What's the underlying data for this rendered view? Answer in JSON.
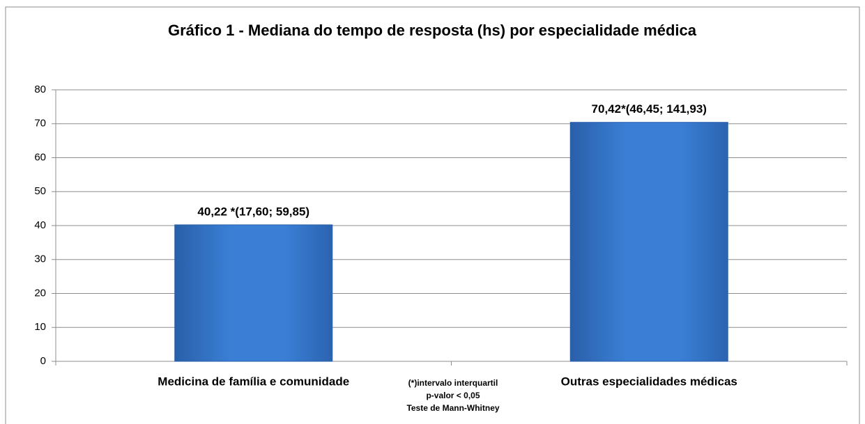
{
  "chart_data": {
    "type": "bar",
    "title": "Gráfico 1 - Mediana do tempo de resposta (hs) por especialidade médica",
    "categories": [
      "Medicina de família e comunidade",
      "Outras especialidades médicas"
    ],
    "values": [
      40.22,
      70.42
    ],
    "value_labels": [
      "40,22 *(17,60; 59,85)",
      "70,42*(46,45; 141,93)"
    ],
    "color": "#3a7fd5",
    "ylim": [
      0,
      80
    ],
    "yticks": [
      0,
      10,
      20,
      30,
      40,
      50,
      60,
      70,
      80
    ],
    "grid": true,
    "annotations": [
      "(*)intervalo interquartil",
      "p-valor < 0,05",
      "Teste de Mann-Whitney"
    ]
  }
}
